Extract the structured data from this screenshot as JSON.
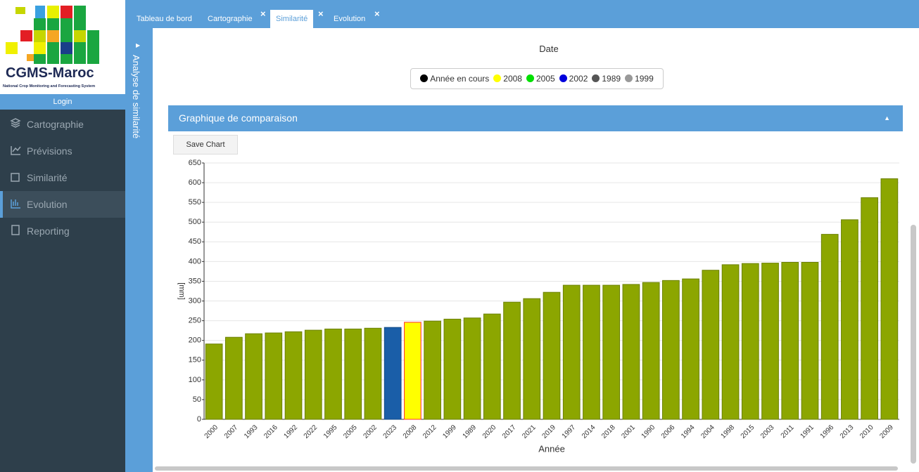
{
  "logo": {
    "title": "CGMS-Maroc",
    "subtitle": "National Crop Monitoring and Forecasting System"
  },
  "login": "Login",
  "menu": [
    "Cartographie",
    "Prévisions",
    "Similarité",
    "Evolution",
    "Reporting"
  ],
  "tabs": [
    "Tableau de bord",
    "Cartographie",
    "Similarité",
    "Evolution"
  ],
  "side_panel": "Analyse de similarité",
  "previous_chart": {
    "x_label": "Date",
    "legend": [
      {
        "name": "Année en cours",
        "color": "#000000"
      },
      {
        "name": "2008",
        "color": "#ffff00"
      },
      {
        "name": "2005",
        "color": "#00e000"
      },
      {
        "name": "2002",
        "color": "#0000dd"
      },
      {
        "name": "1989",
        "color": "#555555"
      },
      {
        "name": "1999",
        "color": "#999999"
      }
    ]
  },
  "panel_title": "Graphique de comparaison",
  "save_button": "Save Chart",
  "chart_data": {
    "type": "bar",
    "x_label": "Année",
    "y_label": "[mm]",
    "categories": [
      "2000",
      "2007",
      "1993",
      "2016",
      "1992",
      "2022",
      "1995",
      "2005",
      "2002",
      "2023",
      "2008",
      "2012",
      "1999",
      "1989",
      "2020",
      "2017",
      "2021",
      "2019",
      "1997",
      "2014",
      "2018",
      "2001",
      "1990",
      "2006",
      "1994",
      "2004",
      "1998",
      "2015",
      "2003",
      "2011",
      "1991",
      "1996",
      "2013",
      "2010",
      "2009"
    ],
    "values": [
      191,
      208,
      217,
      219,
      222,
      226,
      229,
      229,
      231,
      233,
      246,
      249,
      254,
      257,
      267,
      297,
      306,
      322,
      340,
      340,
      340,
      342,
      347,
      352,
      356,
      378,
      392,
      395,
      396,
      398,
      398,
      469,
      506,
      562,
      610
    ],
    "colors": [
      "#8ca600",
      "#8ca600",
      "#8ca600",
      "#8ca600",
      "#8ca600",
      "#8ca600",
      "#8ca600",
      "#8ca600",
      "#8ca600",
      "#1a5ea8",
      "#ffff00",
      "#8ca600",
      "#8ca600",
      "#8ca600",
      "#8ca600",
      "#8ca600",
      "#8ca600",
      "#8ca600",
      "#8ca600",
      "#8ca600",
      "#8ca600",
      "#8ca600",
      "#8ca600",
      "#8ca600",
      "#8ca600",
      "#8ca600",
      "#8ca600",
      "#8ca600",
      "#8ca600",
      "#8ca600",
      "#8ca600",
      "#8ca600",
      "#8ca600",
      "#8ca600",
      "#8ca600"
    ],
    "edgecolors": [
      "#6b8000",
      "#6b8000",
      "#6b8000",
      "#6b8000",
      "#6b8000",
      "#6b8000",
      "#6b8000",
      "#6b8000",
      "#6b8000",
      "#124a85",
      "#ff3030",
      "#6b8000",
      "#6b8000",
      "#6b8000",
      "#6b8000",
      "#6b8000",
      "#6b8000",
      "#6b8000",
      "#6b8000",
      "#6b8000",
      "#6b8000",
      "#6b8000",
      "#6b8000",
      "#6b8000",
      "#6b8000",
      "#6b8000",
      "#6b8000",
      "#6b8000",
      "#6b8000",
      "#6b8000",
      "#6b8000",
      "#6b8000",
      "#6b8000",
      "#6b8000",
      "#6b8000"
    ],
    "ylim": [
      0,
      650
    ],
    "yticks": [
      0,
      50,
      100,
      150,
      200,
      250,
      300,
      350,
      400,
      450,
      500,
      550,
      600,
      650
    ],
    "grid": true
  }
}
